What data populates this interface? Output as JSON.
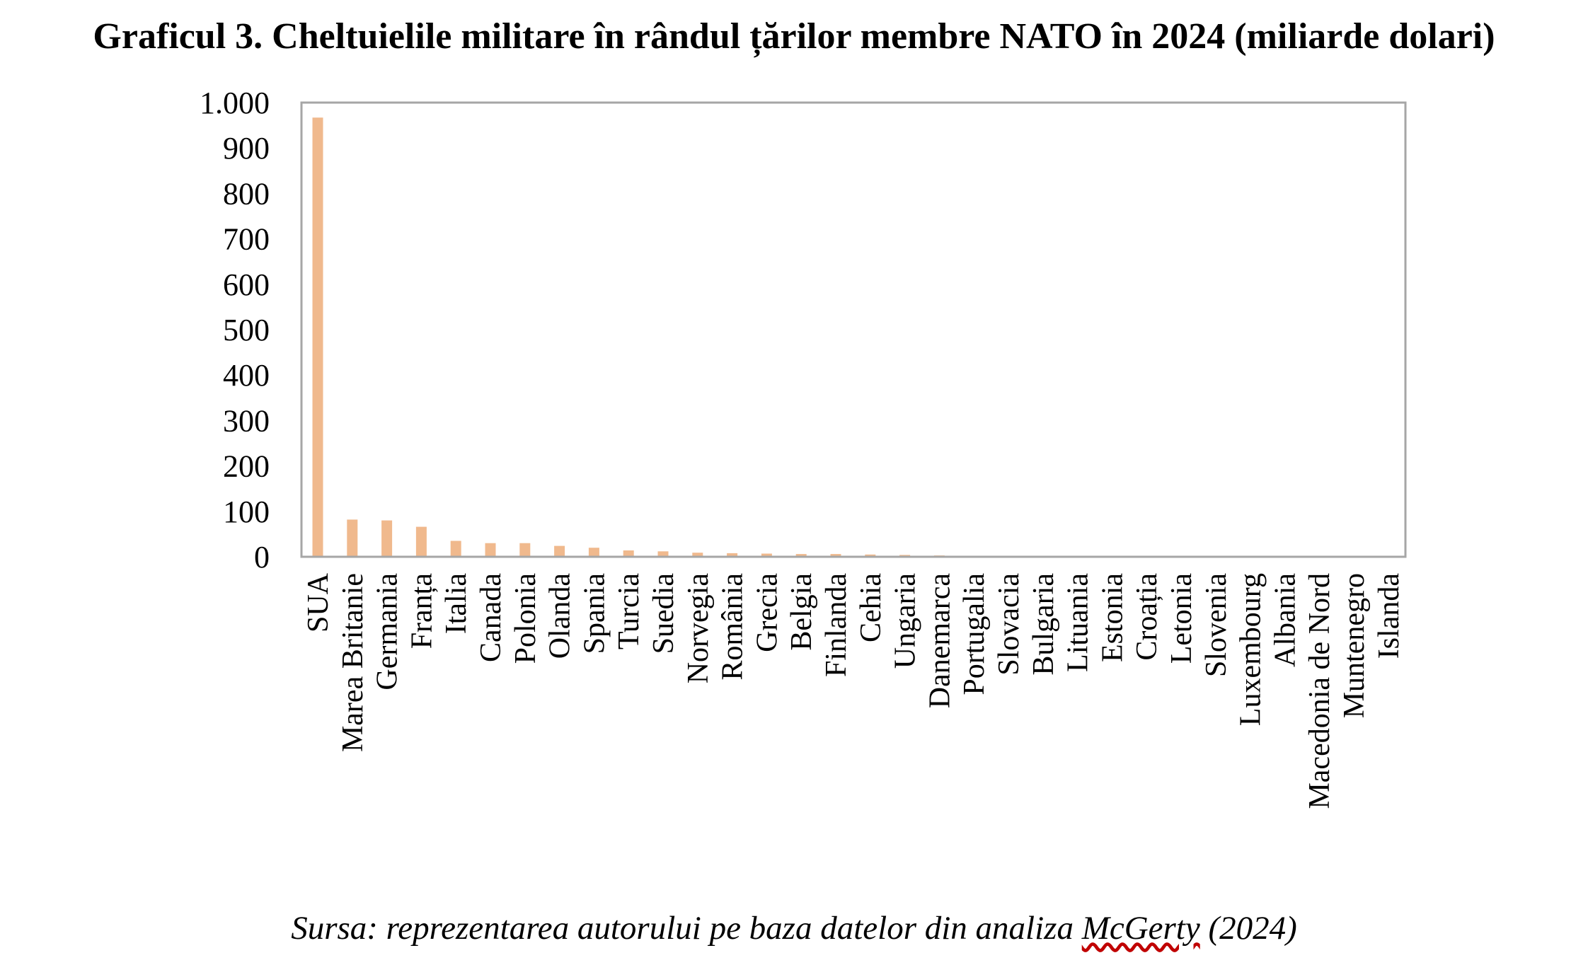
{
  "title": "Graficul 3. Cheltuielile militare în rândul țărilor membre NATO în 2024 (miliarde dolari)",
  "source": {
    "prefix": "Sursa: reprezentarea autorului pe baza datelor din analiza ",
    "reference": "McGerty",
    "suffix": " (2024)"
  },
  "colors": {
    "bar": "#f0b98d",
    "frame": "#a6a6a6"
  },
  "chart_data": {
    "type": "bar",
    "title": "Graficul 3. Cheltuielile militare în rândul țărilor membre NATO în 2024 (miliarde dolari)",
    "xlabel": "",
    "ylabel": "",
    "ylim": [
      0,
      1000
    ],
    "yticks": [
      0,
      100,
      200,
      300,
      400,
      500,
      600,
      700,
      800,
      900,
      1000
    ],
    "ytick_labels": [
      "0",
      "100",
      "200",
      "300",
      "400",
      "500",
      "600",
      "700",
      "800",
      "900",
      "1.000"
    ],
    "grid": false,
    "legend": "none",
    "categories": [
      "SUA",
      "Marea Britanie",
      "Germania",
      "Franța",
      "Italia",
      "Canada",
      "Polonia",
      "Olanda",
      "Spania",
      "Turcia",
      "Suedia",
      "Norvegia",
      "România",
      "Grecia",
      "Belgia",
      "Finlanda",
      "Cehia",
      "Ungaria",
      "Danemarca",
      "Portugalia",
      "Slovacia",
      "Bulgaria",
      "Lituania",
      "Estonia",
      "Croația",
      "Letonia",
      "Slovenia",
      "Luxembourg",
      "Albania",
      "Macedonia de Nord",
      "Muntenegro",
      "Islanda"
    ],
    "values": [
      967,
      82,
      80,
      66,
      35,
      30,
      30,
      24,
      20,
      14,
      12,
      9,
      8,
      7,
      6,
      6,
      5,
      4,
      3,
      1,
      1,
      1,
      1,
      1,
      1,
      1,
      1,
      0.5,
      0.5,
      0.5,
      0.5,
      0.2
    ]
  }
}
